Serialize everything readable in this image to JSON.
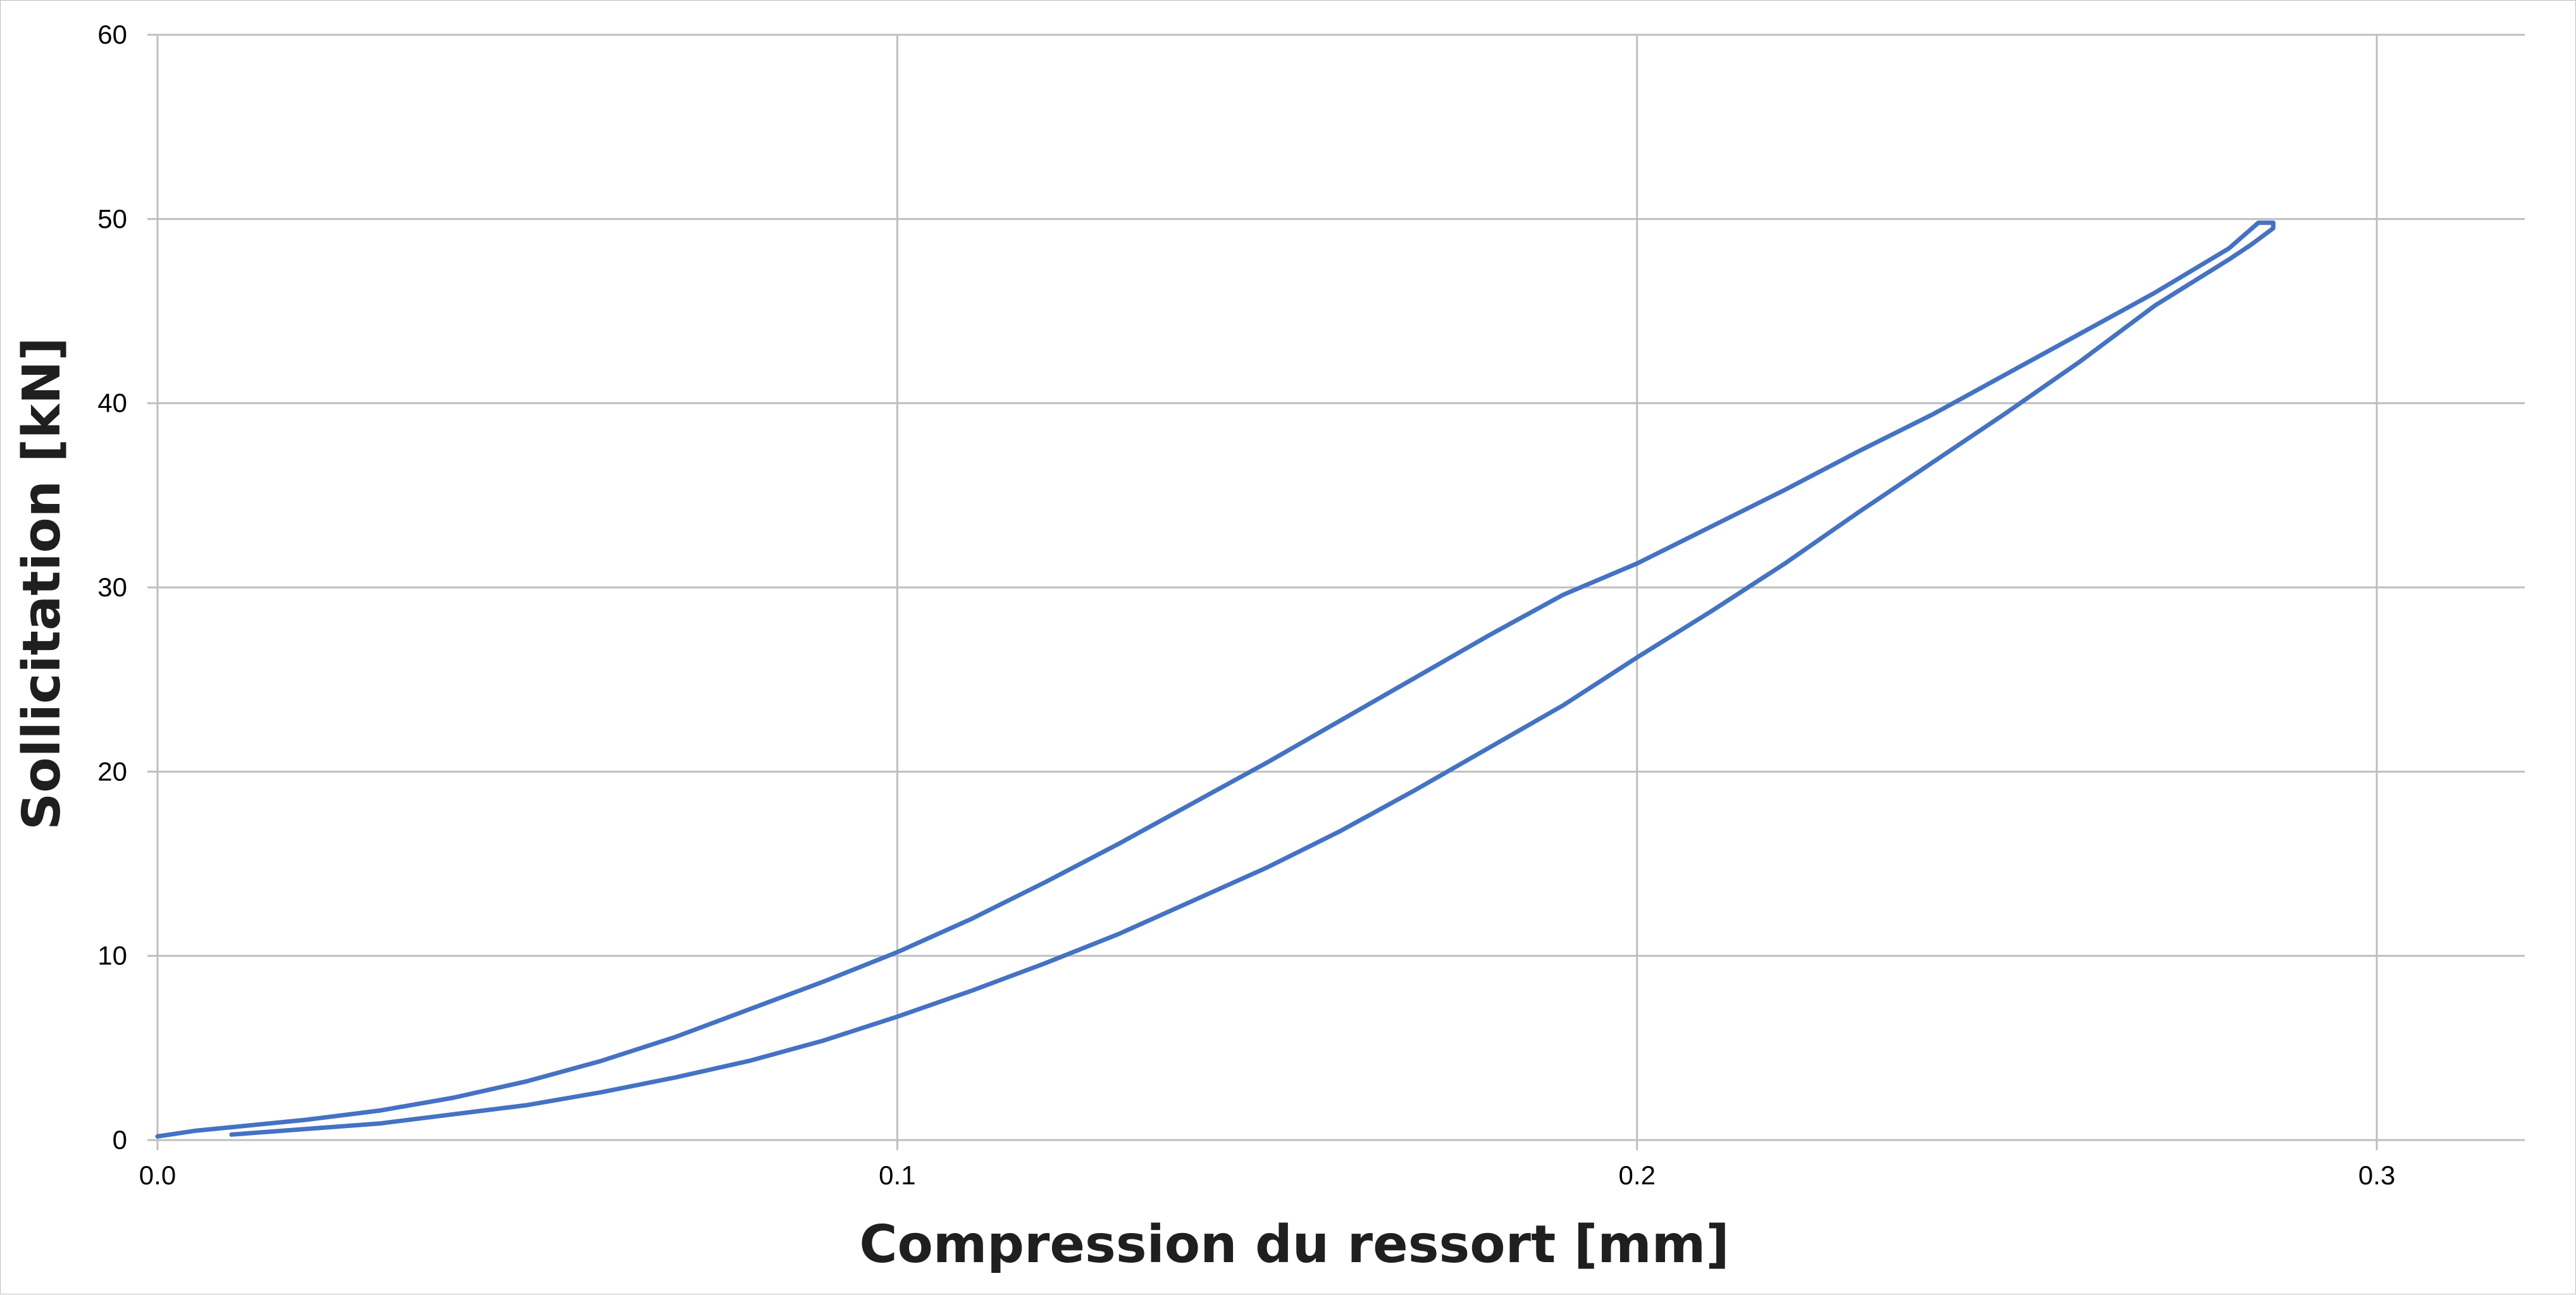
{
  "chart_data": {
    "type": "line",
    "title": "",
    "xlabel": "Compression du ressort [mm]",
    "ylabel": "Sollicitation [kN]",
    "xlim": [
      0.0,
      0.32
    ],
    "ylim": [
      0,
      60
    ],
    "x_ticks": [
      "0.0",
      "0.1",
      "0.2",
      "0.3"
    ],
    "x_tick_values": [
      0.0,
      0.1,
      0.2,
      0.3
    ],
    "y_ticks": [
      "0",
      "10",
      "20",
      "30",
      "40",
      "50",
      "60"
    ],
    "y_tick_values": [
      0,
      10,
      20,
      30,
      40,
      50,
      60
    ],
    "grid": true,
    "legend": "none",
    "series_color": "#4472c4",
    "grid_color": "#bfbfbf",
    "series": [
      {
        "points": [
          [
            0.0,
            0.2
          ],
          [
            0.005,
            0.5
          ],
          [
            0.01,
            0.7
          ],
          [
            0.02,
            1.1
          ],
          [
            0.03,
            1.6
          ],
          [
            0.04,
            2.3
          ],
          [
            0.05,
            3.2
          ],
          [
            0.06,
            4.3
          ],
          [
            0.07,
            5.6
          ],
          [
            0.08,
            7.1
          ],
          [
            0.09,
            8.6
          ],
          [
            0.1,
            10.2
          ],
          [
            0.11,
            12.0
          ],
          [
            0.12,
            14.0
          ],
          [
            0.13,
            16.1
          ],
          [
            0.14,
            18.3
          ],
          [
            0.15,
            20.5
          ],
          [
            0.16,
            22.8
          ],
          [
            0.17,
            25.1
          ],
          [
            0.18,
            27.4
          ],
          [
            0.19,
            29.6
          ],
          [
            0.2,
            31.3
          ],
          [
            0.21,
            33.3
          ],
          [
            0.22,
            35.3
          ],
          [
            0.23,
            37.4
          ],
          [
            0.24,
            39.4
          ],
          [
            0.25,
            41.6
          ],
          [
            0.26,
            43.8
          ],
          [
            0.27,
            46.0
          ],
          [
            0.28,
            48.4
          ],
          [
            0.284,
            49.8
          ],
          [
            0.286,
            49.8
          ],
          [
            0.286,
            49.5
          ],
          [
            0.283,
            48.6
          ],
          [
            0.28,
            47.8
          ],
          [
            0.27,
            45.3
          ],
          [
            0.26,
            42.3
          ],
          [
            0.25,
            39.5
          ],
          [
            0.24,
            36.8
          ],
          [
            0.23,
            34.1
          ],
          [
            0.22,
            31.3
          ],
          [
            0.21,
            28.7
          ],
          [
            0.2,
            26.2
          ],
          [
            0.19,
            23.6
          ],
          [
            0.18,
            21.3
          ],
          [
            0.17,
            19.0
          ],
          [
            0.16,
            16.8
          ],
          [
            0.15,
            14.8
          ],
          [
            0.14,
            13.0
          ],
          [
            0.13,
            11.2
          ],
          [
            0.12,
            9.6
          ],
          [
            0.11,
            8.1
          ],
          [
            0.1,
            6.7
          ],
          [
            0.09,
            5.4
          ],
          [
            0.08,
            4.3
          ],
          [
            0.07,
            3.4
          ],
          [
            0.06,
            2.6
          ],
          [
            0.05,
            1.9
          ],
          [
            0.04,
            1.4
          ],
          [
            0.03,
            0.9
          ],
          [
            0.02,
            0.6
          ],
          [
            0.01,
            0.3
          ]
        ]
      }
    ]
  }
}
